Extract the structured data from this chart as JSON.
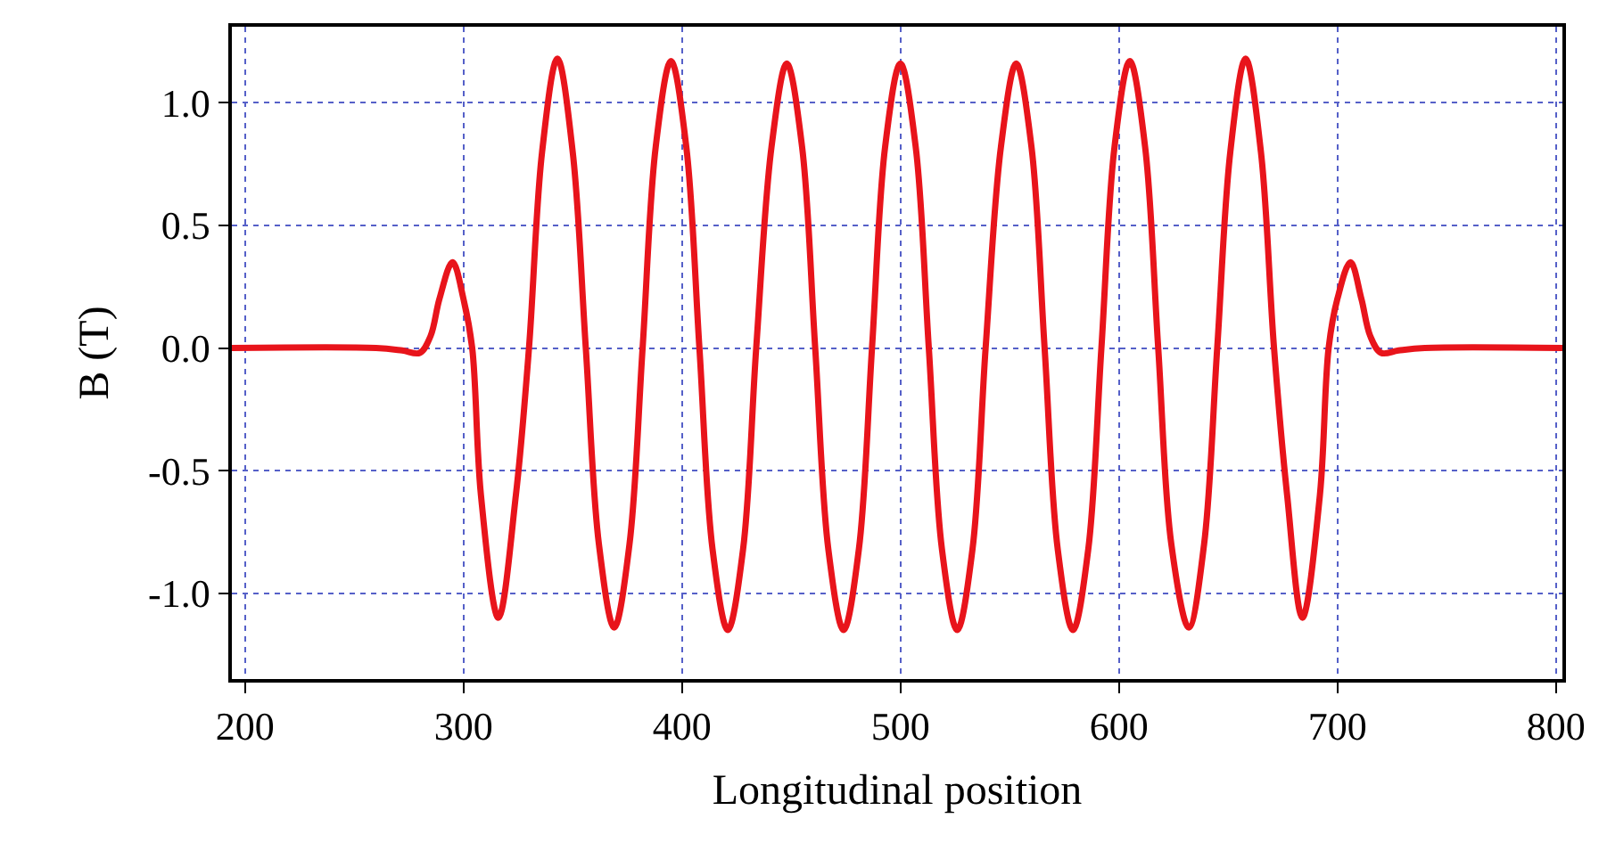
{
  "chart_data": {
    "type": "line",
    "xlabel": "Longitudinal position",
    "ylabel": "B (T)",
    "xlim": [
      194,
      803
    ],
    "ylim": [
      -1.35,
      1.31
    ],
    "xticks": [
      200,
      300,
      400,
      500,
      600,
      700,
      800
    ],
    "yticks": [
      {
        "value": -1.0,
        "label": "-1.0"
      },
      {
        "value": -0.5,
        "label": "-0.5"
      },
      {
        "value": 0.0,
        "label": "0.0"
      },
      {
        "value": 0.5,
        "label": "0.5"
      },
      {
        "value": 1.0,
        "label": "1.0"
      }
    ],
    "grid": true,
    "marker": "none",
    "line_style": "solid",
    "series": [
      {
        "color": "#e8141b",
        "x": [
          194,
          260,
          272,
          280,
          285,
          289,
          295,
          300,
          304,
          308,
          316,
          324,
          330,
          336,
          343,
          350,
          356,
          362,
          369,
          376,
          382,
          388,
          395,
          402,
          408,
          414,
          421,
          428,
          434,
          441,
          448,
          455,
          461,
          467,
          474,
          481,
          487,
          493,
          500,
          507,
          513,
          519,
          526,
          533,
          539,
          546,
          553,
          560,
          566,
          572,
          579,
          586,
          592,
          598,
          605,
          612,
          618,
          624,
          632,
          639,
          645,
          651,
          658,
          665,
          671,
          677,
          684,
          692,
          696,
          700,
          706,
          711,
          715,
          720,
          728,
          740,
          803
        ],
        "values": [
          0,
          0,
          -0.01,
          -0.02,
          0.05,
          0.2,
          0.35,
          0.2,
          0,
          -0.6,
          -1.1,
          -0.6,
          0,
          0.8,
          1.18,
          0.8,
          0,
          -0.8,
          -1.14,
          -0.8,
          0,
          0.82,
          1.17,
          0.82,
          0,
          -0.82,
          -1.15,
          -0.82,
          0,
          0.82,
          1.16,
          0.82,
          0,
          -0.82,
          -1.15,
          -0.82,
          0,
          0.82,
          1.16,
          0.82,
          0,
          -0.82,
          -1.15,
          -0.82,
          0,
          0.82,
          1.16,
          0.82,
          0,
          -0.82,
          -1.15,
          -0.82,
          0,
          0.82,
          1.17,
          0.82,
          0,
          -0.8,
          -1.14,
          -0.8,
          0,
          0.8,
          1.18,
          0.8,
          0,
          -0.6,
          -1.1,
          -0.6,
          0,
          0.2,
          0.35,
          0.2,
          0.05,
          -0.02,
          -0.01,
          0,
          0
        ]
      }
    ]
  }
}
